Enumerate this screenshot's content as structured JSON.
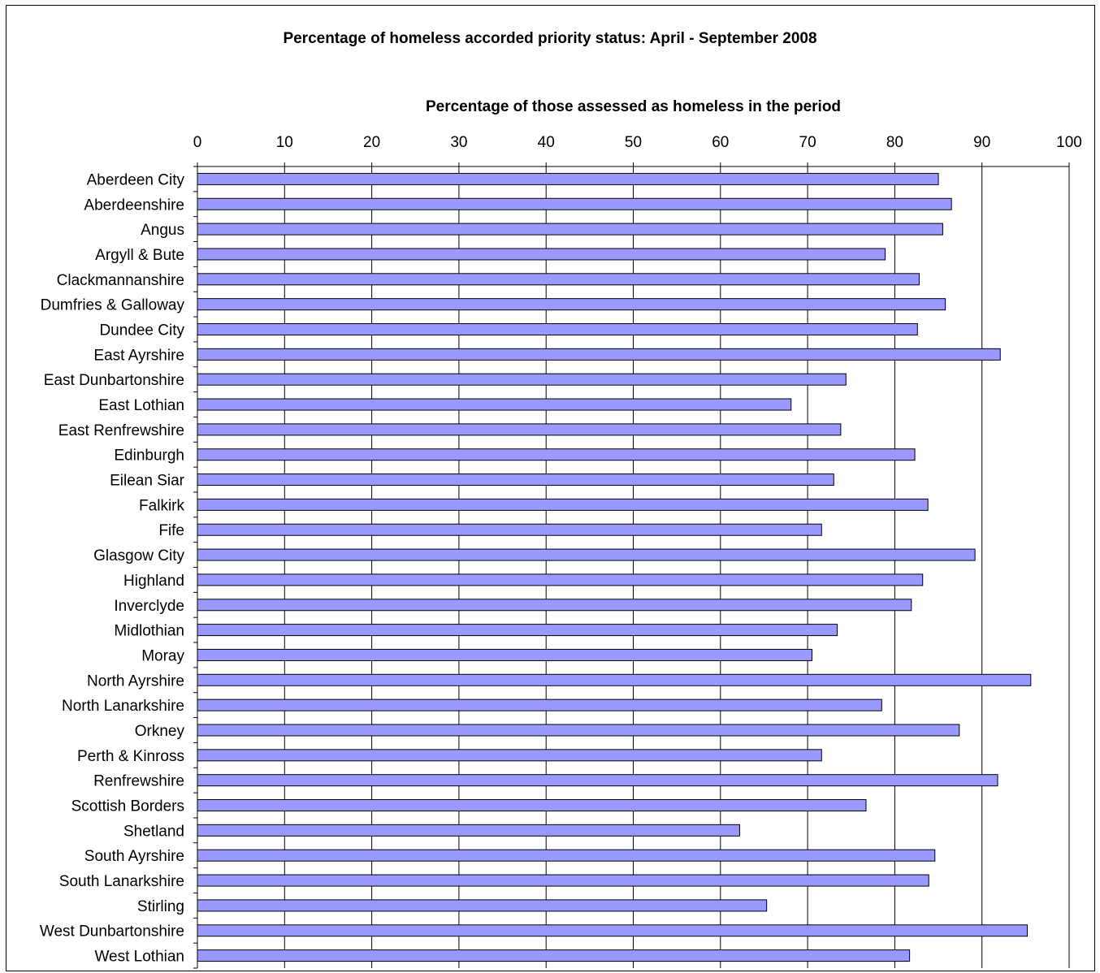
{
  "chart_data": {
    "type": "bar",
    "orientation": "horizontal",
    "title": "Percentage of homeless accorded priority status:  April - September 2008",
    "xlabel": "Percentage of those assessed as homeless in the period",
    "ylabel": "",
    "xlim": [
      0,
      100
    ],
    "x_ticks": [
      0,
      10,
      20,
      30,
      40,
      50,
      60,
      70,
      80,
      90,
      100
    ],
    "x_axis_position": "top",
    "grid": true,
    "bar_color": "#9999ff",
    "categories": [
      "Aberdeen City",
      "Aberdeenshire",
      "Angus",
      "Argyll & Bute",
      "Clackmannanshire",
      "Dumfries & Galloway",
      "Dundee City",
      "East Ayrshire",
      "East Dunbartonshire",
      "East Lothian",
      "East Renfrewshire",
      "Edinburgh",
      "Eilean Siar",
      "Falkirk",
      "Fife",
      "Glasgow City",
      "Highland",
      "Inverclyde",
      "Midlothian",
      "Moray",
      "North Ayrshire",
      "North Lanarkshire",
      "Orkney",
      "Perth & Kinross",
      "Renfrewshire",
      "Scottish Borders",
      "Shetland",
      "South Ayrshire",
      "South Lanarkshire",
      "Stirling",
      "West Dunbartonshire",
      "West Lothian"
    ],
    "values": [
      85.0,
      86.5,
      85.5,
      78.9,
      82.8,
      85.8,
      82.6,
      92.1,
      74.4,
      68.1,
      73.8,
      82.3,
      73.0,
      83.8,
      71.6,
      89.2,
      83.2,
      81.9,
      73.4,
      70.5,
      95.6,
      78.5,
      87.4,
      71.6,
      91.8,
      76.7,
      62.2,
      84.6,
      83.9,
      65.3,
      95.2,
      81.7
    ]
  }
}
